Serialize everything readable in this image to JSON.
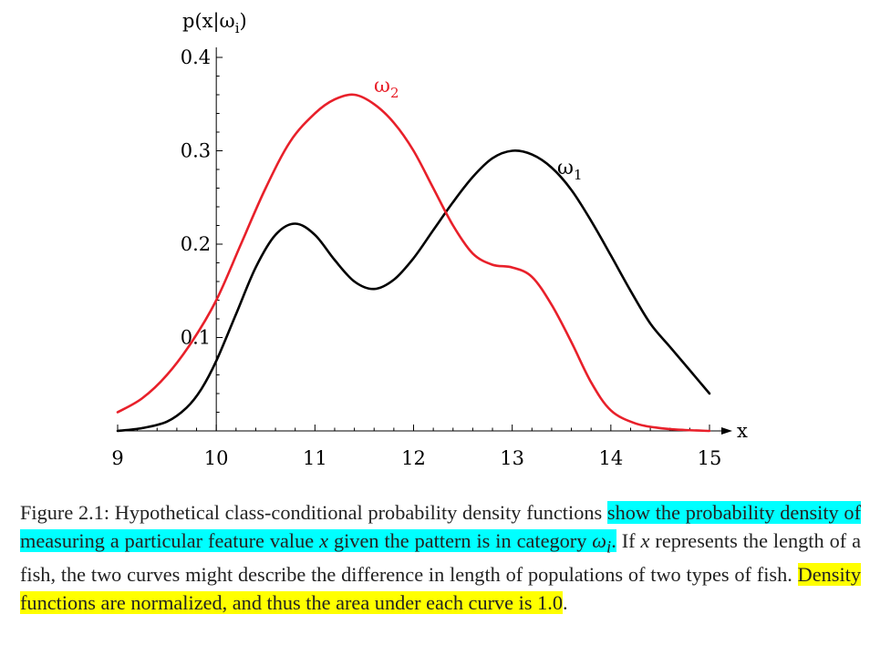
{
  "chart_data": {
    "type": "line",
    "ylabel": "p(x|ωi)",
    "ylabel_parts": {
      "prefix": "p(x|ω",
      "sub": "i",
      "suffix": ")"
    },
    "xlabel": "x",
    "xlim": [
      9,
      15
    ],
    "ylim": [
      0,
      0.4
    ],
    "x_ticks": [
      "9",
      "10",
      "11",
      "12",
      "13",
      "14",
      "15"
    ],
    "y_ticks": [
      "0.1",
      "0.2",
      "0.3",
      "0.4"
    ],
    "grid": false,
    "series": [
      {
        "name": "ω1",
        "label_base": "ω",
        "label_sub": "1",
        "color": "#000000",
        "x": [
          9.0,
          9.25,
          9.5,
          9.7,
          9.85,
          10.0,
          10.2,
          10.4,
          10.6,
          10.8,
          11.0,
          11.2,
          11.4,
          11.6,
          11.8,
          12.0,
          12.2,
          12.4,
          12.6,
          12.8,
          13.0,
          13.2,
          13.4,
          13.6,
          13.8,
          14.0,
          14.2,
          14.4,
          14.6,
          14.8,
          15.0
        ],
        "y": [
          0.0,
          0.003,
          0.01,
          0.025,
          0.045,
          0.075,
          0.125,
          0.175,
          0.21,
          0.222,
          0.21,
          0.183,
          0.16,
          0.152,
          0.162,
          0.185,
          0.215,
          0.245,
          0.272,
          0.292,
          0.3,
          0.296,
          0.282,
          0.258,
          0.225,
          0.188,
          0.15,
          0.115,
          0.09,
          0.065,
          0.04
        ]
      },
      {
        "name": "ω2",
        "label_base": "ω",
        "label_sub": "2",
        "color": "#e8202a",
        "x": [
          9.0,
          9.25,
          9.5,
          9.75,
          10.0,
          10.25,
          10.5,
          10.75,
          11.0,
          11.2,
          11.4,
          11.6,
          11.8,
          12.0,
          12.2,
          12.4,
          12.6,
          12.8,
          13.0,
          13.2,
          13.4,
          13.6,
          13.8,
          14.0,
          14.25,
          14.5,
          14.75,
          15.0
        ],
        "y": [
          0.02,
          0.035,
          0.06,
          0.095,
          0.14,
          0.2,
          0.26,
          0.31,
          0.34,
          0.355,
          0.36,
          0.35,
          0.33,
          0.3,
          0.26,
          0.22,
          0.19,
          0.178,
          0.175,
          0.165,
          0.135,
          0.095,
          0.052,
          0.022,
          0.008,
          0.003,
          0.001,
          0.0
        ]
      }
    ]
  },
  "caption": {
    "part1": "Figure 2.1: Hypothetical class-conditional probability density functions ",
    "hl1a": "show the probability density of measuring a particular feature value ",
    "hl1_var": "x",
    "hl1b": " given the pattern is in category ",
    "hl1_sym": "ω",
    "hl1_sub": "i",
    "hl1c": ".",
    "part2a": " If ",
    "part2_var": "x",
    "part2b": " represents the length of a fish, the two curves might describe the difference in length of populations of two types of fish. ",
    "hl2": "Density functions are normalized, and thus the area under each curve is 1.0",
    "part3": "."
  }
}
